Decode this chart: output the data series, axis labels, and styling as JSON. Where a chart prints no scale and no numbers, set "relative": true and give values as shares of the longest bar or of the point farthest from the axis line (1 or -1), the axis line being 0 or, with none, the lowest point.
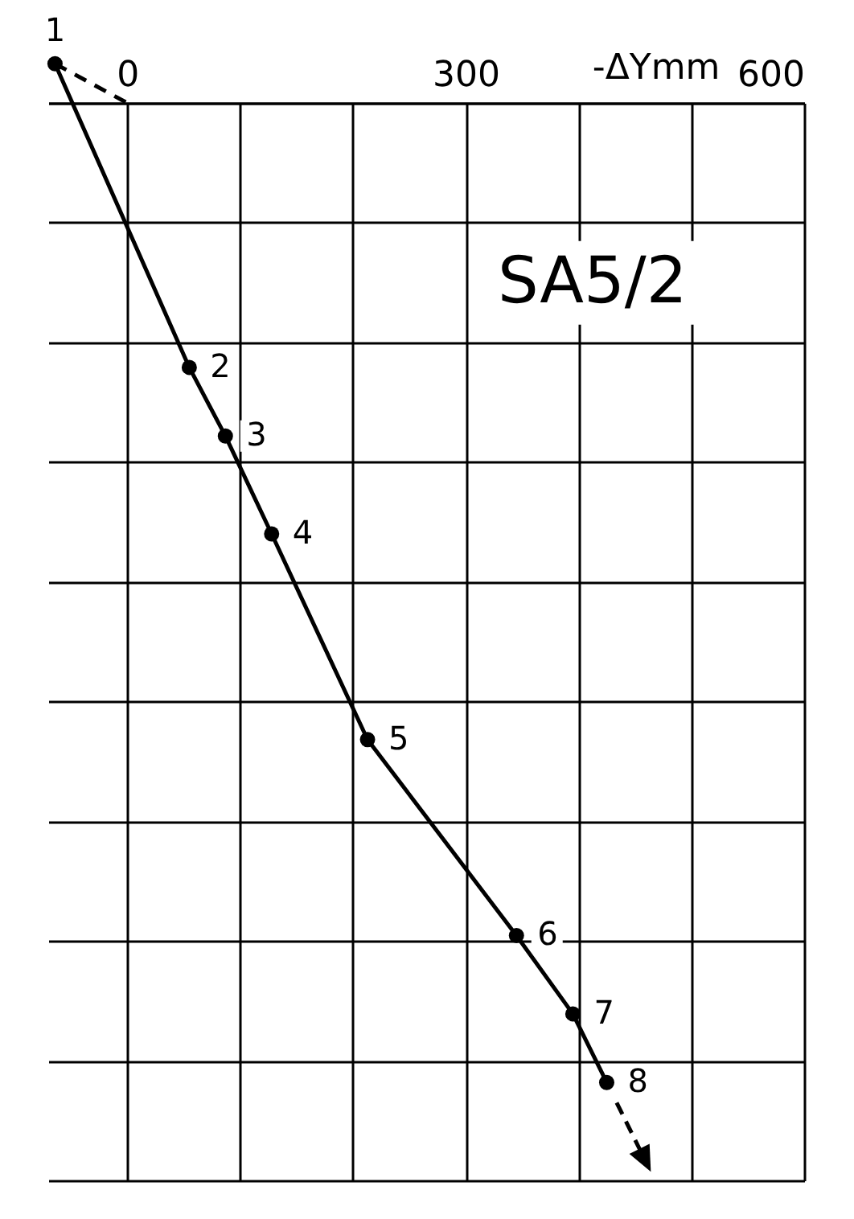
{
  "chart_data": {
    "type": "line",
    "xlabel": "-ΔYmm",
    "relative": true,
    "grid": true,
    "xlim": [
      -70,
      600
    ],
    "xticks": [
      0,
      {
        "value": 100,
        "label": null
      },
      {
        "value": 200,
        "label": null
      },
      300,
      {
        "value": 400,
        "label": null
      },
      {
        "value": 500,
        "label": null
      },
      600
    ],
    "annotations": [
      "SA5/2",
      {
        "text": "1",
        "x": -64,
        "y": 0.04
      },
      {
        "text": "2",
        "x": 55,
        "y": -0.27
      },
      {
        "text": "3",
        "x": 87,
        "y": -0.34
      },
      {
        "text": "4",
        "x": 128,
        "y": -0.44
      },
      {
        "text": "5",
        "x": 213,
        "y": -0.65
      },
      {
        "text": "6",
        "x": 345,
        "y": -0.85
      },
      {
        "text": "7",
        "x": 395,
        "y": -0.93
      },
      {
        "text": "8",
        "x": 425,
        "y": -1
      }
    ],
    "series": [
      {
        "color": "#000000",
        "marker": "circle",
        "line_style": "solid",
        "x": [
          -64,
          55,
          87,
          128,
          213,
          345,
          395,
          425
        ],
        "values": [
          0.04,
          -0.27,
          -0.34,
          -0.44,
          -0.65,
          -0.85,
          -0.93,
          -1
        ]
      },
      {
        "color": "#000000",
        "marker": "none",
        "line_style": "dashed",
        "x": [
          -64,
          0
        ],
        "values": [
          0.04,
          0
        ]
      }
    ]
  }
}
